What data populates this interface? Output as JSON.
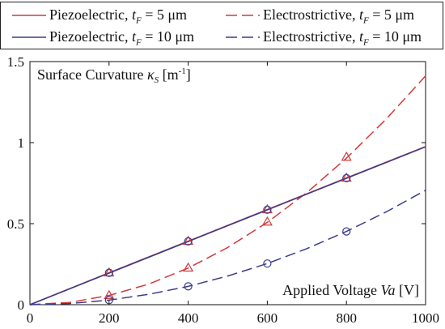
{
  "chart_data": {
    "type": "line",
    "title": "",
    "ylabel": "Surface Curvature κs [m⁻¹]",
    "xlabel": "Applied Voltage Va [V]",
    "ylabel_parts": {
      "pre": "Surface Curvature ",
      "sym": "κ",
      "sub": "S",
      "post": " [m",
      "sup": "-1",
      "end": "]"
    },
    "xlabel_parts": {
      "pre": "Applied Voltage ",
      "sym": "Va",
      "post": " [V]"
    },
    "xlim": [
      0,
      1000
    ],
    "ylim": [
      0,
      1.5
    ],
    "xticks": [
      "0",
      "200",
      "400",
      "600",
      "800",
      "1000"
    ],
    "yticks": [
      "0",
      "0.5",
      "1",
      "1.5"
    ],
    "grid": false,
    "legend_position": "top",
    "series": [
      {
        "name": "Piezoelectric, tF = 5 μm",
        "legend": {
          "pre": "Piezoelectric, ",
          "sym": "t",
          "sub": "F",
          "post": " = 5 μm"
        },
        "style": "solid",
        "color": "#d23a3a",
        "x": [
          0,
          200,
          400,
          600,
          800,
          1000
        ],
        "y": [
          0,
          0.197,
          0.392,
          0.587,
          0.782,
          0.976
        ],
        "markers": {
          "shape": "triangle",
          "x": [
            200,
            400,
            600,
            800
          ],
          "y": [
            0.198,
            0.393,
            0.588,
            0.783
          ]
        }
      },
      {
        "name": "Electrostrictive, tF = 5 μm",
        "legend": {
          "pre": "Electrostrictive, ",
          "sym": "t",
          "sub": "F",
          "post": " = 5 μm"
        },
        "style": "dashed",
        "color": "#d23a3a",
        "x": [
          0,
          100,
          200,
          300,
          400,
          500,
          600,
          700,
          800,
          900,
          1000
        ],
        "y": [
          0,
          0.014,
          0.057,
          0.127,
          0.226,
          0.353,
          0.508,
          0.692,
          0.904,
          1.144,
          1.412
        ],
        "markers": {
          "shape": "triangle",
          "x": [
            200,
            400,
            600,
            800
          ],
          "y": [
            0.058,
            0.228,
            0.512,
            0.912
          ]
        }
      },
      {
        "name": "Piezoelectric, tF = 10 μm",
        "legend": {
          "pre": "Piezoelectric, ",
          "sym": "t",
          "sub": "F",
          "post": " = 10 μm"
        },
        "style": "solid",
        "color": "#3a3a8c",
        "x": [
          0,
          200,
          400,
          600,
          800,
          1000
        ],
        "y": [
          0,
          0.195,
          0.39,
          0.585,
          0.78,
          0.974
        ],
        "markers": {
          "shape": "circle",
          "x": [
            200,
            400,
            600,
            800
          ],
          "y": [
            0.197,
            0.391,
            0.586,
            0.781
          ]
        }
      },
      {
        "name": "Electrostrictive, tF = 10 μm",
        "legend": {
          "pre": "Electrostrictive, ",
          "sym": "t",
          "sub": "F",
          "post": " = 10 μm"
        },
        "style": "dashed",
        "color": "#3a3a8c",
        "x": [
          0,
          100,
          200,
          300,
          400,
          500,
          600,
          700,
          800,
          900,
          1000
        ],
        "y": [
          0,
          0.007,
          0.028,
          0.064,
          0.113,
          0.177,
          0.254,
          0.346,
          0.452,
          0.572,
          0.706
        ],
        "markers": {
          "shape": "circle",
          "x": [
            200,
            400,
            600,
            800
          ],
          "y": [
            0.028,
            0.113,
            0.254,
            0.452
          ]
        }
      }
    ]
  }
}
